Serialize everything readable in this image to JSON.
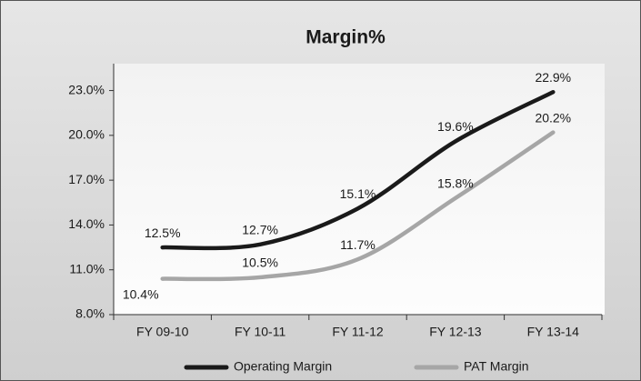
{
  "chart_data": {
    "type": "line",
    "title": "Margin%",
    "categories": [
      "FY 09-10",
      "FY 10-11",
      "FY 11-12",
      "FY 12-13",
      "FY 13-14"
    ],
    "series": [
      {
        "name": "Operating Margin",
        "color": "#1a1a1a",
        "values": [
          12.5,
          12.7,
          15.1,
          19.6,
          22.9
        ],
        "value_labels": [
          "12.5%",
          "12.7%",
          "15.1%",
          "19.6%",
          "22.9%"
        ]
      },
      {
        "name": "PAT Margin",
        "color": "#a6a6a6",
        "values": [
          10.4,
          10.5,
          11.7,
          15.8,
          20.2
        ],
        "value_labels": [
          "10.4%",
          "10.5%",
          "11.7%",
          "15.8%",
          "20.2%"
        ]
      }
    ],
    "ylim": [
      8,
      24.8
    ],
    "yticks": [
      {
        "value": 8,
        "label": "8.0%"
      },
      {
        "value": 11,
        "label": "11.0%"
      },
      {
        "value": 14,
        "label": "14.0%"
      },
      {
        "value": 17,
        "label": "17.0%"
      },
      {
        "value": 20,
        "label": "20.0%"
      },
      {
        "value": 23,
        "label": "23.0%"
      }
    ],
    "legend": "bottom"
  }
}
